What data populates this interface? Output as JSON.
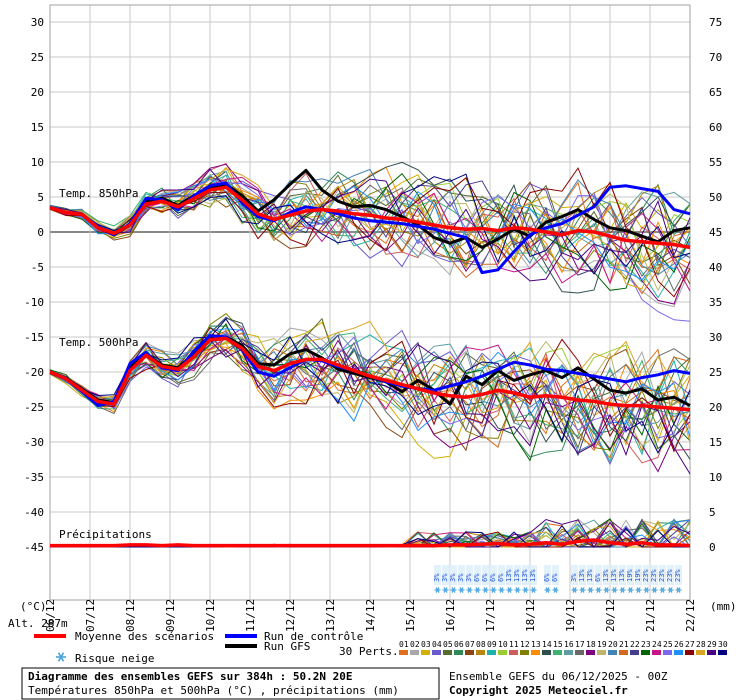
{
  "chart_data": {
    "type": "line",
    "title": "Diagramme des ensembles GEFS sur 384h : 50.2N 20E",
    "subtitle": "Températures 850hPa et 500hPa (°C) , précipitations (mm)",
    "run_info": "Ensemble GEFS du 06/12/2025 - 00Z",
    "copyright": "Copyright 2025 Meteociel.fr",
    "left_axis": {
      "label": "(°C)",
      "ylim": [
        -45,
        30
      ],
      "ticks": [
        30,
        25,
        20,
        15,
        10,
        5,
        0,
        -5,
        -10,
        -15,
        -20,
        -25,
        -30,
        -35,
        -40,
        -45
      ]
    },
    "right_axis": {
      "label": "(mm)",
      "ylim": [
        0,
        75
      ],
      "ticks": [
        75,
        70,
        65,
        60,
        55,
        50,
        45,
        40,
        35,
        30,
        25,
        20,
        15,
        10,
        5,
        0
      ]
    },
    "x_ticks": [
      "06/12",
      "07/12",
      "08/12",
      "09/12",
      "10/12",
      "11/12",
      "12/12",
      "13/12",
      "14/12",
      "15/12",
      "16/12",
      "17/12",
      "18/12",
      "19/12",
      "20/12",
      "21/12",
      "22/12"
    ],
    "altitude_label": "Alt. 287m",
    "panel_labels": {
      "t850": "Temp. 850hPa",
      "t500": "Temp. 500hPa",
      "precip": "Précipitations"
    },
    "grid": true,
    "series": [
      {
        "name": "Moyenne des scénarios",
        "color": "#ff0000",
        "panel": "t850",
        "values": [
          3.5,
          2.8,
          2.5,
          0.6,
          -0.2,
          1.0,
          4.0,
          4.4,
          3.6,
          4.8,
          6.0,
          6.4,
          4.6,
          2.6,
          1.8,
          2.4,
          3.0,
          3.2,
          3.0,
          2.6,
          2.4,
          2.0,
          1.8,
          1.4,
          1.0,
          0.6,
          0.4,
          0.5,
          0.2,
          0.6,
          0.4,
          0.0,
          -0.4,
          0.2,
          0.0,
          -0.6,
          -1.2,
          -1.4,
          -1.6,
          -1.8,
          -2.2
        ]
      },
      {
        "name": "Run de contrôle",
        "color": "#0000ff",
        "panel": "t850",
        "values": [
          3.5,
          2.8,
          2.5,
          0.8,
          -0.4,
          1.2,
          4.8,
          4.6,
          3.2,
          5.2,
          6.6,
          7.0,
          4.2,
          2.2,
          1.6,
          2.8,
          3.6,
          3.2,
          2.6,
          2.0,
          1.6,
          1.4,
          1.2,
          0.8,
          0.4,
          -0.2,
          -0.8,
          -5.8,
          -5.4,
          -2.8,
          -0.4,
          0.6,
          1.2,
          2.4,
          3.6,
          6.4,
          6.6,
          6.2,
          5.8,
          3.2,
          2.6
        ]
      },
      {
        "name": "Run GFS",
        "color": "#000000",
        "panel": "t850",
        "values": [
          3.5,
          2.8,
          2.5,
          0.6,
          -0.4,
          1.0,
          4.4,
          4.8,
          3.8,
          5.2,
          6.2,
          6.8,
          5.2,
          3.0,
          4.6,
          6.8,
          8.8,
          6.0,
          4.4,
          3.6,
          3.8,
          3.2,
          2.2,
          1.0,
          -0.8,
          -1.6,
          -0.8,
          -2.2,
          -1.0,
          0.4,
          -0.6,
          1.4,
          2.2,
          3.2,
          1.8,
          0.6,
          0.2,
          -0.6,
          -1.4,
          0.2,
          0.6
        ]
      },
      {
        "name": "Moyenne des scénarios",
        "color": "#ff0000",
        "panel": "t500",
        "values": [
          -20.0,
          -21.0,
          -22.6,
          -24.2,
          -24.6,
          -19.8,
          -17.6,
          -19.2,
          -19.6,
          -17.8,
          -15.4,
          -15.2,
          -16.6,
          -19.2,
          -19.8,
          -18.8,
          -18.2,
          -18.2,
          -19.0,
          -19.8,
          -20.6,
          -21.2,
          -21.8,
          -22.4,
          -23.0,
          -23.4,
          -23.6,
          -23.2,
          -22.6,
          -23.0,
          -23.6,
          -23.4,
          -23.6,
          -24.0,
          -24.2,
          -24.6,
          -24.8,
          -24.8,
          -25.0,
          -25.2,
          -25.4
        ]
      },
      {
        "name": "Run de contrôle",
        "color": "#0000ff",
        "panel": "t500",
        "values": [
          -20.0,
          -21.0,
          -22.8,
          -24.8,
          -24.2,
          -18.8,
          -17.2,
          -19.4,
          -19.8,
          -17.0,
          -14.8,
          -15.0,
          -16.8,
          -20.0,
          -20.6,
          -19.4,
          -18.2,
          -18.4,
          -19.2,
          -19.8,
          -20.6,
          -21.4,
          -22.0,
          -22.4,
          -22.6,
          -22.0,
          -21.4,
          -20.6,
          -19.6,
          -18.6,
          -19.0,
          -19.6,
          -19.8,
          -20.2,
          -20.6,
          -21.0,
          -21.4,
          -20.8,
          -20.4,
          -19.8,
          -20.2
        ]
      },
      {
        "name": "Run GFS",
        "color": "#000000",
        "panel": "t500",
        "values": [
          -20.0,
          -21.0,
          -22.4,
          -24.0,
          -24.4,
          -19.4,
          -17.4,
          -19.0,
          -19.4,
          -17.4,
          -15.2,
          -15.0,
          -16.2,
          -18.8,
          -19.0,
          -17.4,
          -16.8,
          -18.0,
          -19.6,
          -20.2,
          -20.8,
          -21.4,
          -22.8,
          -21.2,
          -22.6,
          -24.6,
          -20.6,
          -21.8,
          -19.8,
          -21.2,
          -20.4,
          -19.8,
          -20.8,
          -19.4,
          -21.0,
          -22.6,
          -23.0,
          -22.4,
          -24.0,
          -23.6,
          -24.8
        ]
      },
      {
        "name": "Moyenne des scénarios",
        "color": "#ff0000",
        "panel": "precip",
        "values": [
          0.2,
          0.2,
          0.2,
          0.2,
          0.2,
          0.3,
          0.3,
          0.2,
          0.3,
          0.2,
          0.2,
          0.2,
          0.2,
          0.2,
          0.2,
          0.2,
          0.2,
          0.2,
          0.2,
          0.2,
          0.2,
          0.2,
          0.2,
          0.2,
          0.2,
          0.3,
          0.3,
          0.4,
          0.5,
          0.3,
          0.4,
          0.6,
          0.4,
          0.8,
          1.0,
          0.6,
          0.4,
          0.6,
          0.3,
          0.3,
          0.2
        ]
      }
    ],
    "snow_risk": {
      "label": "Risque neige",
      "groups": [
        {
          "labels": [
            "3%",
            "3%",
            "3%",
            "3%",
            "3%",
            "6%",
            "6%",
            "6%",
            "6%",
            "13%",
            "13%",
            "13%",
            "13%"
          ]
        },
        {
          "labels": [
            "6%",
            "6%"
          ]
        },
        {
          "labels": [
            "3%",
            "13%",
            "13%",
            "6%",
            "13%",
            "13%",
            "13%",
            "19%",
            "19%",
            "23%",
            "23%",
            "23%",
            "23%",
            "23%"
          ]
        }
      ]
    },
    "legend": {
      "mean": "Moyenne des scénarios",
      "control": "Run de contrôle",
      "gfs": "Run GFS",
      "snow": "Risque neige",
      "perts_label": "30 Perts.",
      "perts": [
        "01",
        "02",
        "03",
        "04",
        "05",
        "06",
        "07",
        "08",
        "09",
        "10",
        "11",
        "12",
        "13",
        "14",
        "15",
        "16",
        "17",
        "18",
        "19",
        "20",
        "21",
        "22",
        "23",
        "24",
        "25",
        "26",
        "27",
        "28",
        "29",
        "30"
      ],
      "pert_colors": [
        "#e07020",
        "#a8a8a8",
        "#d4b000",
        "#6a5acd",
        "#556b2f",
        "#2e8b57",
        "#8b4513",
        "#b8860b",
        "#20b2aa",
        "#9acd32",
        "#cd5c5c",
        "#808000",
        "#ff8c00",
        "#2f4f4f",
        "#3cb371",
        "#5f9ea0",
        "#696969",
        "#800080",
        "#bdb76b",
        "#4682b4",
        "#d2691e",
        "#483d8b",
        "#006400",
        "#c71585",
        "#7b68ee",
        "#1e90ff",
        "#8b0000",
        "#daa520",
        "#4b0082",
        "#000080"
      ]
    }
  }
}
